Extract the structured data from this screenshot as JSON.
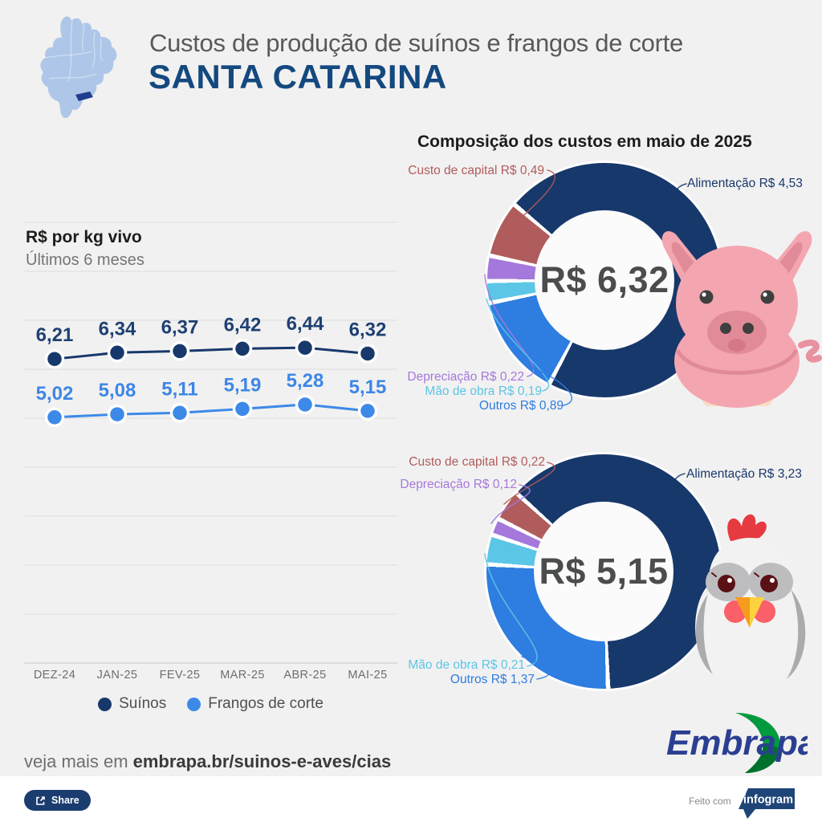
{
  "header": {
    "title": "Custos de produção de suínos e frangos de corte",
    "region": "SANTA CATARINA"
  },
  "chart_data": [
    {
      "type": "line",
      "title": "R$ por kg vivo",
      "subtitle": "Últimos 6 meses",
      "categories": [
        "DEZ-24",
        "JAN-25",
        "FEV-25",
        "MAR-25",
        "ABR-25",
        "MAI-25"
      ],
      "series": [
        {
          "name": "Suínos",
          "color": "#17386b",
          "label_color": "#1e4173",
          "values": [
            6.21,
            6.34,
            6.37,
            6.42,
            6.44,
            6.32
          ],
          "labels": [
            "6,21",
            "6,34",
            "6,37",
            "6,42",
            "6,44",
            "6,32"
          ]
        },
        {
          "name": "Frangos de corte",
          "color": "#3d89e8",
          "label_color": "#3c87e6",
          "values": [
            5.02,
            5.08,
            5.11,
            5.19,
            5.28,
            5.15
          ],
          "labels": [
            "5,02",
            "5,08",
            "5,11",
            "5,19",
            "5,28",
            "5,15"
          ]
        }
      ],
      "ylim": [
        0,
        9
      ],
      "grid": "horizontal",
      "legend_position": "bottom"
    },
    {
      "type": "donut",
      "title": "Composição dos custos em maio de 2025",
      "animal": "suínos",
      "center_label": "R$ 6,32",
      "total": 6.32,
      "start_deg": -50,
      "slices": [
        {
          "name": "Alimentação",
          "label": "Alimentação R$ 4,53",
          "value": 4.53,
          "color": "#17386b"
        },
        {
          "name": "Outros",
          "label": "Outros R$ 0,89",
          "value": 0.89,
          "color": "#2e7de0"
        },
        {
          "name": "Mão de obra",
          "label": "Mão de obra R$ 0,19",
          "value": 0.19,
          "color": "#5bc6e6"
        },
        {
          "name": "Depreciação",
          "label": "Depreciação R$ 0,22",
          "value": 0.22,
          "color": "#a578dc"
        },
        {
          "name": "Custo de capital",
          "label": "Custo de capital R$ 0,49",
          "value": 0.49,
          "color": "#b05c5c"
        }
      ]
    },
    {
      "type": "donut",
      "animal": "frangos de corte",
      "center_label": "R$ 5,15",
      "total": 5.15,
      "start_deg": -48,
      "slices": [
        {
          "name": "Alimentação",
          "label": "Alimentação R$ 3,23",
          "value": 3.23,
          "color": "#17386b"
        },
        {
          "name": "Outros",
          "label": "Outros R$ 1,37",
          "value": 1.37,
          "color": "#2e7de0"
        },
        {
          "name": "Mão de obra",
          "label": "Mão de obra R$ 0,21",
          "value": 0.21,
          "color": "#5bc6e6"
        },
        {
          "name": "Depreciação",
          "label": "Depreciação R$ 0,12",
          "value": 0.12,
          "color": "#a578dc"
        },
        {
          "name": "Custo de capital",
          "label": "Custo de capital R$ 0,22",
          "value": 0.22,
          "color": "#b05c5c"
        }
      ]
    }
  ],
  "footer": {
    "more_prefix": "veja mais em",
    "more_link": "embrapa.br/suinos-e-aves/cias",
    "share_label": "Share",
    "made_with": "Feito com",
    "infogram_label": "infogram",
    "embrapa_label": "Embrapa"
  },
  "colors": {
    "background": "#f2f1f1",
    "map_fill": "#aec7e8",
    "santa_catarina_state": "#1e3f8f",
    "region_title": "#14497f"
  }
}
